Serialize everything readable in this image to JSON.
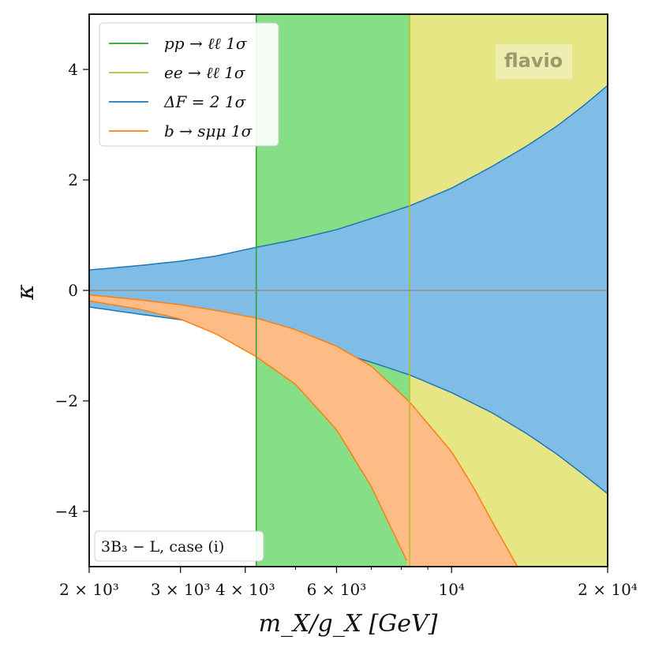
{
  "chart_data": {
    "type": "area",
    "xlabel": "m_X/g_X [GeV]",
    "ylabel": "κ",
    "xscale": "log",
    "xlim": [
      2000,
      20000
    ],
    "ylim": [
      -5,
      5
    ],
    "x_ticks": [
      {
        "value": 2000,
        "label": "2 × 10³"
      },
      {
        "value": 3000,
        "label": "3 × 10³"
      },
      {
        "value": 4000,
        "label": "4 × 10³"
      },
      {
        "value": 6000,
        "label": "6 × 10³"
      },
      {
        "value": 10000,
        "label": "10⁴"
      },
      {
        "value": 20000,
        "label": "2 × 10⁴"
      }
    ],
    "y_ticks": [
      {
        "value": -4,
        "label": "−4"
      },
      {
        "value": -2,
        "label": "−2"
      },
      {
        "value": 0,
        "label": "0"
      },
      {
        "value": 2,
        "label": "2"
      },
      {
        "value": 4,
        "label": "4"
      }
    ],
    "grid": false,
    "legend_position": "top-left",
    "series": [
      {
        "name": "pp → ℓℓ 1σ",
        "kind": "vertical-band",
        "x_lower": 4200,
        "x_upper": 20000,
        "color": "#2ca02c",
        "fill": "#86de86"
      },
      {
        "name": "ee → ℓℓ 1σ",
        "kind": "vertical-band",
        "x_lower": 8300,
        "x_upper": 20000,
        "color": "#bcbd22",
        "fill": "#e6e684"
      },
      {
        "name": "ΔF = 2 1σ",
        "kind": "band",
        "color": "#1f77b4",
        "fill": "#7fbce6",
        "x": [
          2000,
          2500,
          3000,
          3500,
          4200,
          5000,
          6000,
          7000,
          8300,
          10000,
          12000,
          14000,
          16000,
          18000,
          20000
        ],
        "upper": [
          0.37,
          0.45,
          0.53,
          0.62,
          0.78,
          0.92,
          1.1,
          1.3,
          1.53,
          1.85,
          2.25,
          2.62,
          2.98,
          3.35,
          3.71
        ],
        "lower": [
          -0.3,
          -0.43,
          -0.53,
          -0.62,
          -0.75,
          -0.91,
          -1.11,
          -1.3,
          -1.53,
          -1.85,
          -2.22,
          -2.6,
          -2.97,
          -3.34,
          -3.68
        ]
      },
      {
        "name": "b → sμμ 1σ",
        "kind": "band",
        "color": "#ff7f0e",
        "fill": "#fdbb85",
        "x": [
          2000,
          2500,
          3000,
          3500,
          4200,
          5000,
          6000,
          7000,
          8300,
          10000,
          11000,
          12000,
          13400
        ],
        "upper": [
          -0.08,
          -0.17,
          -0.26,
          -0.36,
          -0.5,
          -0.71,
          -1.01,
          -1.37,
          -2.02,
          -2.92,
          -3.55,
          -4.2,
          -5.0
        ],
        "lower": [
          -0.19,
          -0.34,
          -0.52,
          -0.78,
          -1.2,
          -1.7,
          -2.52,
          -3.55,
          -5.0,
          null,
          null,
          null,
          null
        ]
      }
    ],
    "reference_lines": [
      {
        "kind": "horizontal",
        "y": 0,
        "color": "#8c8c8c"
      }
    ],
    "annotations": [
      {
        "text": "flavio",
        "kind": "watermark",
        "position": "top-right"
      },
      {
        "text": "3B₃ − L, case (i)",
        "kind": "label",
        "position": "bottom-left"
      }
    ]
  }
}
